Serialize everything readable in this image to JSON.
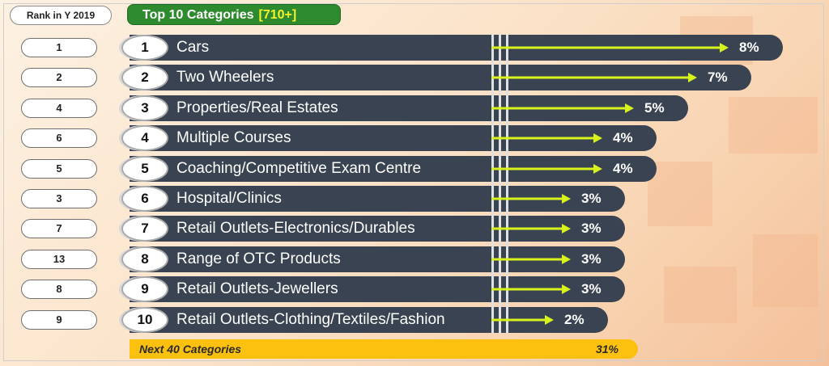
{
  "header": {
    "rank_label": "Rank in Y 2019",
    "title": "Top 10 Categories",
    "title_count": "[710+]"
  },
  "colors": {
    "bar": "#3a4351",
    "arrow": "#d8f21c",
    "title_bg": "#2e8a2e",
    "next_bg": "#fcc10f"
  },
  "chart_data": {
    "type": "bar",
    "categories": [
      "Cars",
      "Two Wheelers",
      "Properties/Real Estates",
      "Multiple Courses",
      "Coaching/Competitive Exam Centre",
      "Hospital/Clinics",
      "Retail Outlets-Electronics/Durables",
      "Range of OTC Products",
      "Retail Outlets-Jewellers",
      "Retail Outlets-Clothing/Textiles/Fashion"
    ],
    "positions": [
      "1",
      "2",
      "3",
      "4",
      "5",
      "6",
      "7",
      "8",
      "9",
      "10"
    ],
    "rank_2019": [
      "1",
      "2",
      "4",
      "6",
      "5",
      "3",
      "7",
      "13",
      "8",
      "9"
    ],
    "values": [
      8,
      7,
      5,
      4,
      4,
      3,
      3,
      3,
      3,
      2
    ],
    "value_labels": [
      "8%",
      "7%",
      "5%",
      "4%",
      "4%",
      "3%",
      "3%",
      "3%",
      "3%",
      "2%"
    ],
    "title": "Top 10 Categories"
  },
  "footer": {
    "next_label": "Next 40 Categories",
    "next_value": "31%"
  }
}
